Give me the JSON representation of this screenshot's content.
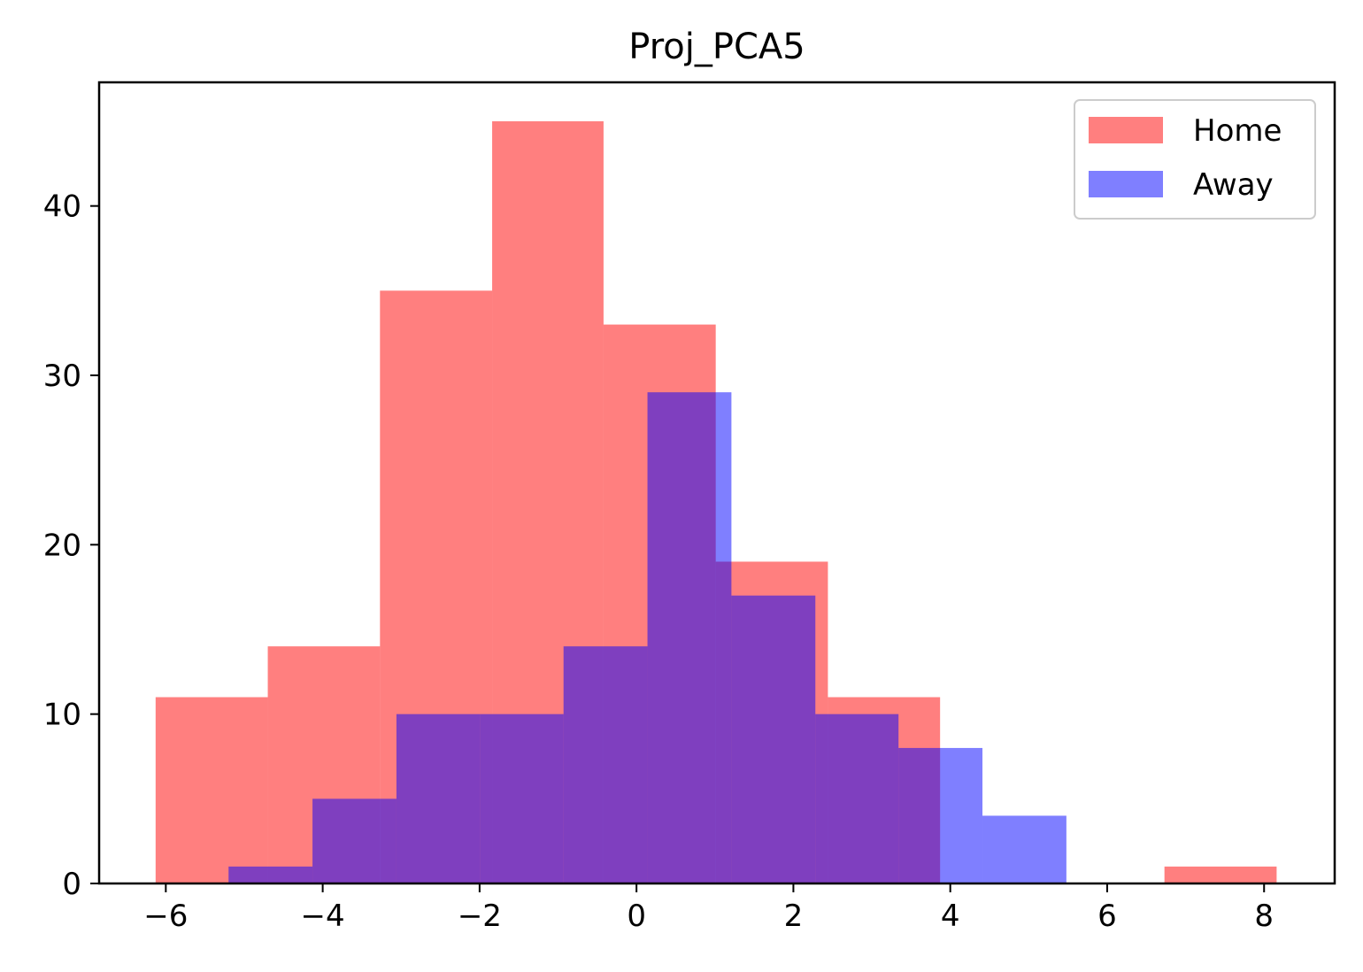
{
  "chart_data": {
    "type": "bar",
    "title": "Proj_PCA5",
    "xlabel": "",
    "ylabel": "",
    "xlim": [
      -6.85,
      8.9
    ],
    "ylim": [
      0,
      47.3
    ],
    "x_ticks": [
      -6,
      -4,
      -2,
      0,
      2,
      4,
      6,
      8
    ],
    "y_ticks": [
      0,
      10,
      20,
      30,
      40
    ],
    "x_tick_labels": [
      "−6",
      "−4",
      "−2",
      "0",
      "2",
      "4",
      "6",
      "8"
    ],
    "y_tick_labels": [
      "0",
      "10",
      "20",
      "30",
      "40"
    ],
    "grid": false,
    "legend_position": "top-right",
    "series": [
      {
        "name": "Home",
        "color": "#ff0000",
        "alpha": 0.5,
        "bin_edges": [
          -6.13,
          -4.7,
          -3.27,
          -1.84,
          -0.42,
          1.01,
          2.44,
          3.87,
          5.3,
          6.73,
          8.16
        ],
        "counts": [
          11,
          14,
          35,
          45,
          33,
          19,
          11,
          0,
          0,
          1
        ]
      },
      {
        "name": "Away",
        "color": "#0000ff",
        "alpha": 0.5,
        "bin_edges": [
          -5.2,
          -4.13,
          -3.06,
          -1.99,
          -0.93,
          0.14,
          1.21,
          2.28,
          3.34,
          4.41,
          5.48
        ],
        "counts": [
          1,
          5,
          10,
          10,
          14,
          29,
          17,
          10,
          8,
          4
        ]
      }
    ]
  }
}
